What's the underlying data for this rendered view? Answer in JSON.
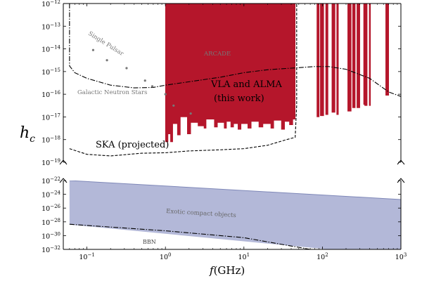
{
  "chart_data": {
    "type": "area",
    "x_scale": "log",
    "xlim": [
      0.05,
      1000
    ],
    "x_ticks": [
      {
        "value": 0.1,
        "base": "10",
        "exp": "−1"
      },
      {
        "value": 1,
        "base": "10",
        "exp": "0"
      },
      {
        "value": 10,
        "base": "10",
        "exp": "1"
      },
      {
        "value": 100,
        "base": "10",
        "exp": "2"
      },
      {
        "value": 1000,
        "base": "10",
        "exp": "3"
      }
    ],
    "xlabel": {
      "italic": "f",
      "rest": "(GHz)"
    },
    "ylabel": {
      "base": "h",
      "sub": "c"
    },
    "axis_break": true,
    "panels": [
      {
        "name": "top",
        "y_scale": "log",
        "ylim_exp": [
          -19,
          -12
        ],
        "y_ticks": [
          {
            "exp_value": -19,
            "base": "10",
            "exp": "−19"
          },
          {
            "exp_value": -18,
            "base": "10",
            "exp": "−18"
          },
          {
            "exp_value": -17,
            "base": "10",
            "exp": "−17"
          },
          {
            "exp_value": -16,
            "base": "10",
            "exp": "−16"
          },
          {
            "exp_value": -15,
            "base": "10",
            "exp": "−15"
          },
          {
            "exp_value": -14,
            "base": "10",
            "exp": "−14"
          },
          {
            "exp_value": -13,
            "base": "10",
            "exp": "−13"
          },
          {
            "exp_value": -12,
            "base": "10",
            "exp": "−12"
          }
        ]
      },
      {
        "name": "bottom",
        "y_scale": "log",
        "ylim_exp": [
          -32,
          -22
        ],
        "y_ticks": [
          {
            "exp_value": -32,
            "base": "10",
            "exp": "−32"
          },
          {
            "exp_value": -30,
            "base": "10",
            "exp": "−30"
          },
          {
            "exp_value": -28,
            "base": "10",
            "exp": "−28"
          },
          {
            "exp_value": -26,
            "base": "10",
            "exp": "−26"
          },
          {
            "exp_value": -24,
            "base": "10",
            "exp": "−24"
          },
          {
            "exp_value": -22,
            "base": "10",
            "exp": "−22"
          }
        ]
      }
    ],
    "colors": {
      "limit_fill": "#b5162b",
      "exotic_fill": "#b3b8d8",
      "exotic_edge": "#7f88b8",
      "curve": "#000000",
      "pulsar_points": "#777777",
      "label_grey": "#777777"
    },
    "series": [
      {
        "name": "VLA and ALMA (this work)",
        "kind": "upper_limit_region",
        "panel": "top",
        "bands": [
          {
            "x_range": [
              1.0,
              45.0
            ],
            "lower_exp": [
              [
                1.0,
                -18.1
              ],
              [
                1.08,
                -18.1
              ],
              [
                1.08,
                -17.75
              ],
              [
                1.16,
                -17.75
              ],
              [
                1.16,
                -18.1
              ],
              [
                1.24,
                -18.1
              ],
              [
                1.24,
                -17.3
              ],
              [
                1.42,
                -17.3
              ],
              [
                1.42,
                -17.8
              ],
              [
                1.55,
                -17.8
              ],
              [
                1.55,
                -17.0
              ],
              [
                1.9,
                -17.0
              ],
              [
                1.9,
                -17.75
              ],
              [
                2.1,
                -17.75
              ],
              [
                2.1,
                -17.25
              ],
              [
                2.6,
                -17.25
              ],
              [
                2.6,
                -17.4
              ],
              [
                3.1,
                -17.4
              ],
              [
                3.1,
                -17.5
              ],
              [
                3.3,
                -17.5
              ],
              [
                3.3,
                -17.1
              ],
              [
                4.2,
                -17.1
              ],
              [
                4.2,
                -17.45
              ],
              [
                4.6,
                -17.45
              ],
              [
                4.6,
                -17.25
              ],
              [
                5.6,
                -17.25
              ],
              [
                5.6,
                -17.5
              ],
              [
                6.0,
                -17.5
              ],
              [
                6.0,
                -17.2
              ],
              [
                6.8,
                -17.2
              ],
              [
                6.8,
                -17.45
              ],
              [
                7.4,
                -17.45
              ],
              [
                7.4,
                -17.3
              ],
              [
                8.4,
                -17.3
              ],
              [
                8.4,
                -17.55
              ],
              [
                9.2,
                -17.55
              ],
              [
                9.2,
                -17.3
              ],
              [
                11.2,
                -17.3
              ],
              [
                11.2,
                -17.5
              ],
              [
                12.4,
                -17.5
              ],
              [
                12.4,
                -17.2
              ],
              [
                15.5,
                -17.2
              ],
              [
                15.5,
                -17.45
              ],
              [
                17.5,
                -17.45
              ],
              [
                17.5,
                -17.3
              ],
              [
                22.0,
                -17.3
              ],
              [
                22.0,
                -17.5
              ],
              [
                24.0,
                -17.5
              ],
              [
                24.0,
                -17.15
              ],
              [
                30.0,
                -17.15
              ],
              [
                30.0,
                -17.55
              ],
              [
                33.0,
                -17.55
              ],
              [
                33.0,
                -17.2
              ],
              [
                38.0,
                -17.2
              ],
              [
                38.0,
                -17.35
              ],
              [
                42.0,
                -17.35
              ],
              [
                42.0,
                -17.1
              ],
              [
                45.0,
                -17.1
              ]
            ]
          },
          {
            "x_range": [
              85,
              91
            ],
            "lower_exp": [
              [
                85,
                -17.0
              ],
              [
                91,
                -17.0
              ]
            ]
          },
          {
            "x_range": [
              94,
              104
            ],
            "lower_exp": [
              [
                94,
                -16.95
              ],
              [
                104,
                -16.95
              ]
            ]
          },
          {
            "x_range": [
              110,
              118
            ],
            "lower_exp": [
              [
                110,
                -16.9
              ],
              [
                118,
                -16.9
              ]
            ]
          },
          {
            "x_range": [
              132,
              145
            ],
            "lower_exp": [
              [
                132,
                -16.8
              ],
              [
                145,
                -16.8
              ]
            ]
          },
          {
            "x_range": [
              152,
              160
            ],
            "lower_exp": [
              [
                152,
                -16.9
              ],
              [
                160,
                -16.9
              ]
            ]
          },
          {
            "x_range": [
              210,
              233
            ],
            "lower_exp": [
              [
                210,
                -16.75
              ],
              [
                233,
                -16.75
              ]
            ]
          },
          {
            "x_range": [
              242,
              262
            ],
            "lower_exp": [
              [
                242,
                -16.6
              ],
              [
                262,
                -16.6
              ]
            ]
          },
          {
            "x_range": [
              275,
              300
            ],
            "lower_exp": [
              [
                275,
                -16.6
              ],
              [
                300,
                -16.6
              ]
            ]
          },
          {
            "x_range": [
              335,
              350
            ],
            "lower_exp": [
              [
                335,
                -16.45
              ],
              [
                350,
                -16.45
              ]
            ]
          },
          {
            "x_range": [
              345,
              372
            ],
            "lower_exp": [
              [
                345,
                -16.5
              ],
              [
                372,
                -16.5
              ]
            ]
          },
          {
            "x_range": [
              395,
              410
            ],
            "lower_exp": [
              [
                395,
                -16.5
              ],
              [
                410,
                -16.5
              ]
            ]
          },
          {
            "x_range": [
              640,
              672
            ],
            "lower_exp": [
              [
                640,
                -16.05
              ],
              [
                672,
                -16.05
              ]
            ]
          },
          {
            "x_range": [
              680,
              700
            ],
            "lower_exp": [
              [
                680,
                -16.05
              ],
              [
                700,
                -16.05
              ]
            ]
          }
        ],
        "label_lines": [
          "VLA and ALMA",
          "(this work)"
        ]
      },
      {
        "name": "SKA (projected)",
        "kind": "dashed_curve",
        "panel": "top",
        "points": [
          [
            0.06,
            -18.4
          ],
          [
            0.1,
            -18.65
          ],
          [
            0.2,
            -18.72
          ],
          [
            0.5,
            -18.6
          ],
          [
            1.0,
            -18.58
          ],
          [
            2.0,
            -18.5
          ],
          [
            5.0,
            -18.45
          ],
          [
            10.0,
            -18.4
          ],
          [
            20.0,
            -18.25
          ],
          [
            35.0,
            -18.0
          ],
          [
            45.0,
            -17.9
          ],
          [
            47.0,
            -16.5
          ],
          [
            47.0,
            -12.0
          ]
        ]
      },
      {
        "name": "ARCADE",
        "kind": "dashdot_curve",
        "panel": "top",
        "points": [
          [
            0.06,
            -12.0
          ],
          [
            0.06,
            -14.75
          ],
          [
            0.07,
            -15.05
          ],
          [
            0.1,
            -15.3
          ],
          [
            0.2,
            -15.6
          ],
          [
            0.4,
            -15.72
          ],
          [
            0.7,
            -15.7
          ],
          [
            1.0,
            -15.6
          ],
          [
            2.0,
            -15.45
          ],
          [
            5.0,
            -15.25
          ],
          [
            10.0,
            -15.05
          ],
          [
            20.0,
            -14.92
          ],
          [
            40.0,
            -14.85
          ],
          [
            80.0,
            -14.78
          ],
          [
            120.0,
            -14.78
          ],
          [
            200.0,
            -14.9
          ],
          [
            400.0,
            -15.3
          ],
          [
            700.0,
            -15.9
          ],
          [
            1000.0,
            -16.1
          ]
        ]
      },
      {
        "name": "Single Pulsar",
        "kind": "points",
        "panel": "top",
        "points": [
          [
            0.12,
            -14.05
          ],
          [
            0.18,
            -14.5
          ],
          [
            0.32,
            -14.85
          ],
          [
            0.55,
            -15.4
          ],
          [
            0.68,
            -15.65
          ],
          [
            1.0,
            -16.0
          ],
          [
            1.27,
            -16.5
          ],
          [
            2.1,
            -16.85
          ]
        ]
      },
      {
        "name": "Exotic compact objects",
        "kind": "band",
        "panel": "bottom",
        "upper": [
          [
            0.06,
            -22.0
          ],
          [
            1000,
            -24.75
          ]
        ],
        "lower": [
          [
            0.06,
            -28.4
          ],
          [
            1000,
            -33.0
          ]
        ]
      },
      {
        "name": "BBN",
        "kind": "dashdot_curve",
        "panel": "bottom",
        "points": [
          [
            0.06,
            -28.35
          ],
          [
            1.0,
            -29.3
          ],
          [
            10.0,
            -30.3
          ],
          [
            70.0,
            -32.0
          ],
          [
            1000,
            -32.0
          ]
        ]
      }
    ],
    "annotations": {
      "vla": [
        "VLA and ALMA",
        "(this work)"
      ],
      "ska": "SKA (projected)",
      "arcade": "ARCADE",
      "single_pulsar": "Single Pulsar",
      "neutron_stars": "Galactic Neutron Stars",
      "exotic": "Exotic compact objects",
      "bbn": "BBN"
    }
  }
}
